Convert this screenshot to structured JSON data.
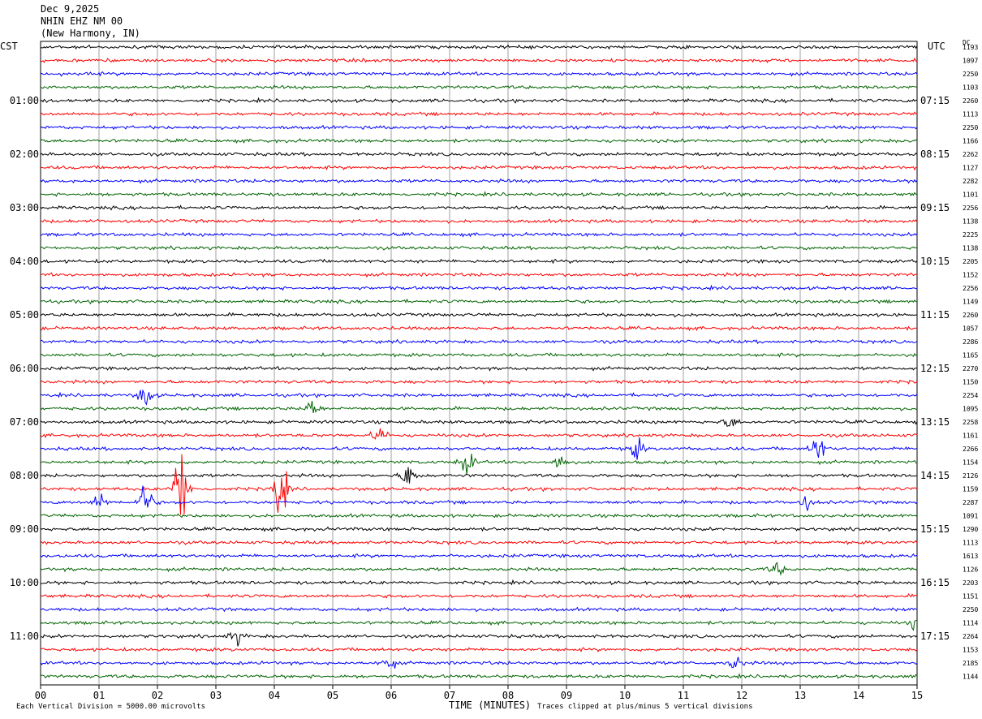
{
  "header": {
    "date": "Dec 9,2025",
    "station": "NHIN EHZ NM 00",
    "location": "(New Harmony, IN)"
  },
  "left_tz": "CST",
  "right_tz": "UTC",
  "dc_label": "DC",
  "footer": {
    "scale": "Each Vertical Division = 5000.00 microvolts",
    "x_title": "TIME (MINUTES)",
    "clip": "Traces clipped at plus/minus 5 vertical divisions"
  },
  "chart_data": {
    "type": "line",
    "xlabel": "TIME (MINUTES)",
    "xlim": [
      0,
      15
    ],
    "x_ticks": [
      "00",
      "01",
      "02",
      "03",
      "04",
      "05",
      "06",
      "07",
      "08",
      "09",
      "10",
      "11",
      "12",
      "13",
      "14",
      "15"
    ],
    "trace_colors": [
      "#000000",
      "#ff0000",
      "#0000ff",
      "#006400"
    ],
    "left_hour_labels": [
      "01:00",
      "02:00",
      "03:00",
      "04:00",
      "05:00",
      "06:00",
      "07:00",
      "08:00",
      "09:00",
      "10:00",
      "11:00"
    ],
    "right_hour_labels": [
      "07:15",
      "08:15",
      "09:15",
      "10:15",
      "11:15",
      "12:15",
      "13:15",
      "14:15",
      "15:15",
      "16:15",
      "17:15"
    ],
    "dc_values": [
      "1193",
      "1097",
      "2250",
      "1103",
      "2260",
      "1113",
      "2250",
      "1166",
      "2262",
      "1127",
      "2282",
      "1101",
      "2256",
      "1138",
      "2225",
      "1138",
      "2205",
      "1152",
      "2256",
      "1149",
      "2260",
      "1057",
      "2286",
      "1165",
      "2270",
      "1150",
      "2254",
      "1095",
      "2258",
      "1161",
      "2266",
      "1154",
      "2126",
      "1159",
      "2287",
      "1091",
      "1290",
      "1113",
      "1613",
      "1126",
      "2203",
      "1151",
      "2250",
      "1114",
      "2264",
      "1153",
      "2185",
      "1144"
    ],
    "events": [
      {
        "trace": 26,
        "minute": 1.8,
        "amplitude": 0.7
      },
      {
        "trace": 27,
        "minute": 4.65,
        "amplitude": 0.6
      },
      {
        "trace": 28,
        "minute": 11.8,
        "amplitude": 0.35
      },
      {
        "trace": 29,
        "minute": 5.8,
        "amplitude": 0.5
      },
      {
        "trace": 30,
        "minute": 10.2,
        "amplitude": 0.6
      },
      {
        "trace": 30,
        "minute": 13.3,
        "amplitude": 0.9
      },
      {
        "trace": 31,
        "minute": 7.3,
        "amplitude": 0.7
      },
      {
        "trace": 31,
        "minute": 8.9,
        "amplitude": 0.5
      },
      {
        "trace": 32,
        "minute": 6.3,
        "amplitude": 0.8
      },
      {
        "trace": 33,
        "minute": 2.4,
        "amplitude": 2.6
      },
      {
        "trace": 33,
        "minute": 4.1,
        "amplitude": 1.6
      },
      {
        "trace": 34,
        "minute": 1.0,
        "amplitude": 0.5
      },
      {
        "trace": 34,
        "minute": 1.8,
        "amplitude": 1.1
      },
      {
        "trace": 34,
        "minute": 13.1,
        "amplitude": 0.4
      },
      {
        "trace": 39,
        "minute": 12.6,
        "amplitude": 0.35
      },
      {
        "trace": 43,
        "minute": 15.0,
        "amplitude": 0.4
      },
      {
        "trace": 44,
        "minute": 3.35,
        "amplitude": 0.4
      },
      {
        "trace": 46,
        "minute": 5.95,
        "amplitude": 0.4
      },
      {
        "trace": 46,
        "minute": 11.9,
        "amplitude": 0.4
      }
    ]
  }
}
